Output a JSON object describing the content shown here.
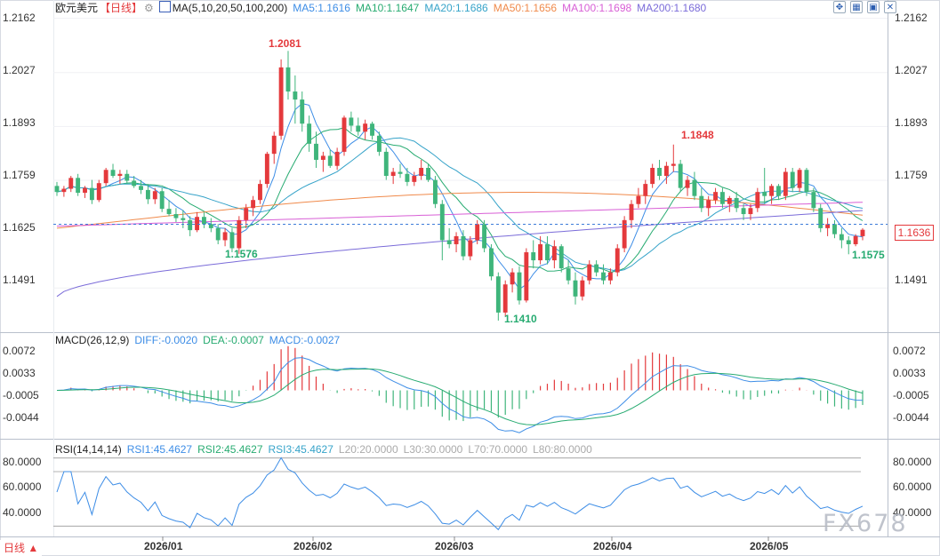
{
  "header": {
    "pair": "欧元美元",
    "period": "【日线】",
    "period_icon": "gear-icon",
    "ma_icon": "chart-icon",
    "ma_params": "MA(5,10,20,50,100,200)",
    "ma_items": [
      {
        "label": "MA5:1.1616",
        "color": "#3d8de6"
      },
      {
        "label": "MA10:1.1647",
        "color": "#27ab71"
      },
      {
        "label": "MA20:1.1686",
        "color": "#36a3c9"
      },
      {
        "label": "MA50:1.1656",
        "color": "#f08a4b"
      },
      {
        "label": "MA100:1.1698",
        "color": "#d85fd6"
      },
      {
        "label": "MA200:1.1680",
        "color": "#7b6cd9"
      }
    ],
    "toolbar_icons": [
      "expand-icon",
      "layout-icon",
      "screenshot-icon",
      "close-icon"
    ]
  },
  "price_panel": {
    "y_ticks": [
      "1.2162",
      "1.2027",
      "1.1893",
      "1.1759",
      "1.1625",
      "1.1491"
    ],
    "current_price": "1.1636",
    "high_label": "1.2081",
    "low_label": "1.1576",
    "second_low": "1.1410",
    "second_high": "1.1848",
    "recent_low": "1.1575"
  },
  "macd_panel": {
    "title": "MACD(26,12,9)",
    "diff": "DIFF:-0.0020",
    "dea": "DEA:-0.0007",
    "macd": "MACD:-0.0027",
    "y_ticks": [
      "0.0072",
      "0.0033",
      "-0.0005",
      "-0.0044"
    ]
  },
  "rsi_panel": {
    "title": "RSI(14,14,14)",
    "rsi1": "RSI1:45.4627",
    "rsi2": "RSI2:45.4627",
    "rsi3": "RSI3:45.4627",
    "l20": "L20:20.0000",
    "l30": "L30:30.0000",
    "l70": "L70:70.0000",
    "l80": "L80:80.0000",
    "y_ticks": [
      "80.0000",
      "60.0000",
      "40.0000"
    ]
  },
  "x_axis": {
    "labels": [
      "2026/01",
      "2026/02",
      "2026/03",
      "2026/04",
      "2026/05"
    ]
  },
  "date_button": "日线 ▲",
  "watermark": "FX678",
  "colors": {
    "up": "#e4393c",
    "down": "#3fb57b",
    "ma5": "#3d8de6",
    "ma10": "#27ab71",
    "ma20": "#36a3c9",
    "ma50": "#f08a4b",
    "ma100": "#d85fd6",
    "ma200": "#7b6cd9"
  },
  "chart_data": {
    "type": "candlestick",
    "ylim": [
      1.139,
      1.219
    ],
    "candles": [
      [
        1.1745,
        1.1755,
        1.172,
        1.173
      ],
      [
        1.173,
        1.1745,
        1.1718,
        1.1738
      ],
      [
        1.1738,
        1.177,
        1.173,
        1.1765
      ],
      [
        1.1765,
        1.1775,
        1.172,
        1.1728
      ],
      [
        1.1728,
        1.1745,
        1.1715,
        1.174
      ],
      [
        1.174,
        1.176,
        1.17,
        1.171
      ],
      [
        1.171,
        1.176,
        1.1705,
        1.1752
      ],
      [
        1.1752,
        1.179,
        1.1745,
        1.1785
      ],
      [
        1.1785,
        1.18,
        1.1765,
        1.177
      ],
      [
        1.177,
        1.1785,
        1.175,
        1.1775
      ],
      [
        1.1775,
        1.1785,
        1.175,
        1.1758
      ],
      [
        1.1758,
        1.177,
        1.174,
        1.1745
      ],
      [
        1.1745,
        1.176,
        1.1725,
        1.1735
      ],
      [
        1.1735,
        1.175,
        1.17,
        1.1712
      ],
      [
        1.1712,
        1.174,
        1.17,
        1.1732
      ],
      [
        1.1732,
        1.174,
        1.168,
        1.1688
      ],
      [
        1.1688,
        1.171,
        1.167,
        1.1675
      ],
      [
        1.1675,
        1.169,
        1.1655,
        1.1665
      ],
      [
        1.1665,
        1.1685,
        1.164,
        1.166
      ],
      [
        1.166,
        1.167,
        1.162,
        1.1635
      ],
      [
        1.1635,
        1.168,
        1.163,
        1.1668
      ],
      [
        1.1668,
        1.168,
        1.164,
        1.165
      ],
      [
        1.165,
        1.1665,
        1.163,
        1.164
      ],
      [
        1.164,
        1.165,
        1.16,
        1.161
      ],
      [
        1.161,
        1.164,
        1.1595,
        1.163
      ],
      [
        1.163,
        1.164,
        1.158,
        1.159
      ],
      [
        1.159,
        1.167,
        1.1576,
        1.166
      ],
      [
        1.166,
        1.17,
        1.164,
        1.169
      ],
      [
        1.169,
        1.172,
        1.167,
        1.171
      ],
      [
        1.171,
        1.176,
        1.17,
        1.175
      ],
      [
        1.175,
        1.183,
        1.174,
        1.1825
      ],
      [
        1.1825,
        1.188,
        1.18,
        1.187
      ],
      [
        1.187,
        1.206,
        1.186,
        1.204
      ],
      [
        1.204,
        1.2081,
        1.196,
        1.198
      ],
      [
        1.198,
        1.202,
        1.19,
        1.196
      ],
      [
        1.196,
        1.198,
        1.188,
        1.19
      ],
      [
        1.19,
        1.192,
        1.183,
        1.185
      ],
      [
        1.185,
        1.188,
        1.179,
        1.181
      ],
      [
        1.181,
        1.183,
        1.178,
        1.182
      ],
      [
        1.182,
        1.1835,
        1.179,
        1.1795
      ],
      [
        1.1795,
        1.184,
        1.1785,
        1.183
      ],
      [
        1.183,
        1.192,
        1.182,
        1.1915
      ],
      [
        1.1915,
        1.193,
        1.188,
        1.1895
      ],
      [
        1.1895,
        1.1915,
        1.187,
        1.188
      ],
      [
        1.188,
        1.191,
        1.186,
        1.19
      ],
      [
        1.19,
        1.1905,
        1.186,
        1.187
      ],
      [
        1.187,
        1.188,
        1.182,
        1.183
      ],
      [
        1.183,
        1.184,
        1.176,
        1.177
      ],
      [
        1.177,
        1.179,
        1.175,
        1.178
      ],
      [
        1.178,
        1.18,
        1.1765,
        1.1775
      ],
      [
        1.1775,
        1.179,
        1.1745,
        1.1755
      ],
      [
        1.1755,
        1.178,
        1.1745,
        1.177
      ],
      [
        1.177,
        1.181,
        1.176,
        1.179
      ],
      [
        1.179,
        1.18,
        1.1755,
        1.176
      ],
      [
        1.176,
        1.177,
        1.169,
        1.17
      ],
      [
        1.17,
        1.171,
        1.156,
        1.161
      ],
      [
        1.161,
        1.164,
        1.159,
        1.16
      ],
      [
        1.16,
        1.163,
        1.158,
        1.162
      ],
      [
        1.162,
        1.1635,
        1.156,
        1.157
      ],
      [
        1.157,
        1.162,
        1.156,
        1.161
      ],
      [
        1.161,
        1.166,
        1.16,
        1.165
      ],
      [
        1.165,
        1.166,
        1.158,
        1.159
      ],
      [
        1.159,
        1.16,
        1.151,
        1.152
      ],
      [
        1.152,
        1.153,
        1.141,
        1.143
      ],
      [
        1.143,
        1.151,
        1.142,
        1.15
      ],
      [
        1.15,
        1.154,
        1.148,
        1.153
      ],
      [
        1.153,
        1.1545,
        1.145,
        1.146
      ],
      [
        1.146,
        1.159,
        1.1455,
        1.158
      ],
      [
        1.158,
        1.161,
        1.154,
        1.156
      ],
      [
        1.156,
        1.162,
        1.155,
        1.16
      ],
      [
        1.16,
        1.162,
        1.155,
        1.156
      ],
      [
        1.156,
        1.161,
        1.154,
        1.1595
      ],
      [
        1.1595,
        1.16,
        1.153,
        1.154
      ],
      [
        1.154,
        1.156,
        1.15,
        1.151
      ],
      [
        1.151,
        1.153,
        1.145,
        1.147
      ],
      [
        1.147,
        1.152,
        1.146,
        1.151
      ],
      [
        1.151,
        1.156,
        1.15,
        1.155
      ],
      [
        1.155,
        1.156,
        1.152,
        1.153
      ],
      [
        1.153,
        1.155,
        1.15,
        1.151
      ],
      [
        1.151,
        1.154,
        1.15,
        1.153
      ],
      [
        1.153,
        1.16,
        1.152,
        1.159
      ],
      [
        1.159,
        1.167,
        1.158,
        1.166
      ],
      [
        1.166,
        1.171,
        1.164,
        1.17
      ],
      [
        1.17,
        1.174,
        1.169,
        1.172
      ],
      [
        1.172,
        1.176,
        1.17,
        1.175
      ],
      [
        1.175,
        1.18,
        1.174,
        1.179
      ],
      [
        1.179,
        1.181,
        1.176,
        1.177
      ],
      [
        1.177,
        1.1805,
        1.175,
        1.1795
      ],
      [
        1.1795,
        1.1848,
        1.178,
        1.18
      ],
      [
        1.18,
        1.181,
        1.173,
        1.174
      ],
      [
        1.174,
        1.177,
        1.172,
        1.176
      ],
      [
        1.176,
        1.178,
        1.171,
        1.172
      ],
      [
        1.172,
        1.174,
        1.168,
        1.169
      ],
      [
        1.169,
        1.172,
        1.167,
        1.171
      ],
      [
        1.171,
        1.174,
        1.17,
        1.173
      ],
      [
        1.173,
        1.174,
        1.169,
        1.17
      ],
      [
        1.17,
        1.172,
        1.168,
        1.1715
      ],
      [
        1.1715,
        1.173,
        1.168,
        1.169
      ],
      [
        1.169,
        1.17,
        1.166,
        1.1675
      ],
      [
        1.1675,
        1.17,
        1.166,
        1.169
      ],
      [
        1.169,
        1.174,
        1.168,
        1.173
      ],
      [
        1.173,
        1.179,
        1.17,
        1.172
      ],
      [
        1.172,
        1.175,
        1.17,
        1.1745
      ],
      [
        1.1745,
        1.175,
        1.171,
        1.172
      ],
      [
        1.172,
        1.179,
        1.171,
        1.178
      ],
      [
        1.178,
        1.179,
        1.173,
        1.174
      ],
      [
        1.174,
        1.179,
        1.173,
        1.1785
      ],
      [
        1.1785,
        1.179,
        1.172,
        1.173
      ],
      [
        1.173,
        1.174,
        1.168,
        1.169
      ],
      [
        1.169,
        1.17,
        1.163,
        1.164
      ],
      [
        1.164,
        1.1665,
        1.162,
        1.165
      ],
      [
        1.165,
        1.166,
        1.1615,
        1.1625
      ],
      [
        1.1625,
        1.164,
        1.159,
        1.161
      ],
      [
        1.161,
        1.162,
        1.1575,
        1.16
      ],
      [
        1.16,
        1.1625,
        1.1595,
        1.162
      ],
      [
        1.162,
        1.164,
        1.161,
        1.1636
      ]
    ]
  }
}
